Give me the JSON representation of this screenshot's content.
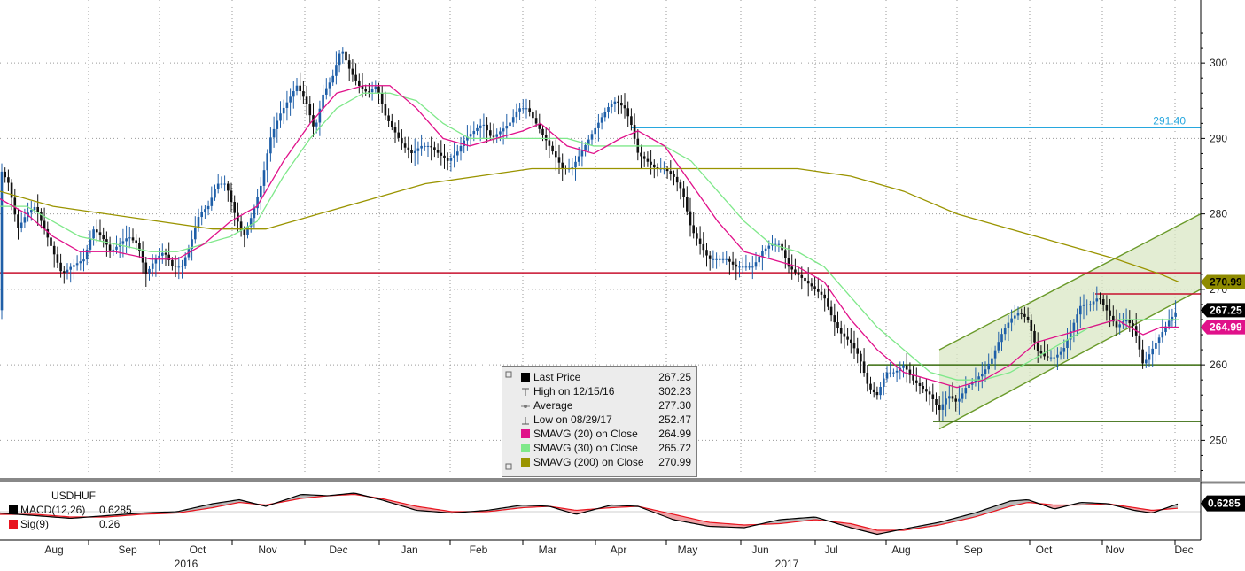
{
  "chart_data": {
    "type": "line",
    "instrument": "USDHUF",
    "price_axis": {
      "ylim": [
        245,
        306
      ],
      "ticks": [
        250,
        260,
        270,
        280,
        290,
        300
      ]
    },
    "x_axis": {
      "months": [
        "Aug",
        "Sep",
        "Oct",
        "Nov",
        "Dec",
        "Jan",
        "Feb",
        "Mar",
        "Apr",
        "May",
        "Jun",
        "Jul",
        "Aug",
        "Sep",
        "Oct",
        "Nov",
        "Dec"
      ],
      "years": [
        "2016",
        "2017"
      ]
    },
    "price_points": [
      [
        0,
        286
      ],
      [
        10,
        284
      ],
      [
        20,
        278
      ],
      [
        30,
        280
      ],
      [
        40,
        281
      ],
      [
        50,
        278
      ],
      [
        60,
        275
      ],
      [
        70,
        272
      ],
      [
        80,
        273
      ],
      [
        95,
        274
      ],
      [
        105,
        278
      ],
      [
        115,
        277
      ],
      [
        125,
        275
      ],
      [
        135,
        276
      ],
      [
        145,
        277
      ],
      [
        155,
        276
      ],
      [
        165,
        272
      ],
      [
        175,
        274
      ],
      [
        185,
        275
      ],
      [
        195,
        273
      ],
      [
        205,
        273
      ],
      [
        215,
        276
      ],
      [
        225,
        280
      ],
      [
        235,
        281
      ],
      [
        245,
        284
      ],
      [
        255,
        284
      ],
      [
        265,
        280
      ],
      [
        275,
        277
      ],
      [
        285,
        280
      ],
      [
        295,
        284
      ],
      [
        305,
        290
      ],
      [
        315,
        293
      ],
      [
        325,
        295
      ],
      [
        335,
        297
      ],
      [
        345,
        295
      ],
      [
        355,
        291
      ],
      [
        365,
        296
      ],
      [
        375,
        298
      ],
      [
        385,
        302
      ],
      [
        395,
        299
      ],
      [
        405,
        297
      ],
      [
        415,
        296
      ],
      [
        425,
        297
      ],
      [
        435,
        293
      ],
      [
        445,
        291
      ],
      [
        455,
        289
      ],
      [
        465,
        288
      ],
      [
        475,
        289
      ],
      [
        485,
        289
      ],
      [
        495,
        288
      ],
      [
        505,
        287
      ],
      [
        515,
        288
      ],
      [
        525,
        290
      ],
      [
        535,
        291
      ],
      [
        545,
        292
      ],
      [
        555,
        290
      ],
      [
        565,
        291
      ],
      [
        575,
        292
      ],
      [
        585,
        294
      ],
      [
        595,
        294
      ],
      [
        605,
        292
      ],
      [
        615,
        290
      ],
      [
        625,
        288
      ],
      [
        635,
        286
      ],
      [
        645,
        286
      ],
      [
        655,
        288
      ],
      [
        665,
        290
      ],
      [
        675,
        292
      ],
      [
        685,
        294
      ],
      [
        695,
        295
      ],
      [
        705,
        294
      ],
      [
        712,
        292
      ],
      [
        720,
        288
      ],
      [
        730,
        287
      ],
      [
        740,
        286
      ],
      [
        750,
        286
      ],
      [
        760,
        285
      ],
      [
        770,
        283
      ],
      [
        780,
        278
      ],
      [
        790,
        276
      ],
      [
        800,
        274
      ],
      [
        810,
        274
      ],
      [
        820,
        274
      ],
      [
        830,
        273
      ],
      [
        840,
        273
      ],
      [
        850,
        273
      ],
      [
        860,
        275
      ],
      [
        870,
        276
      ],
      [
        880,
        276
      ],
      [
        890,
        273
      ],
      [
        900,
        272
      ],
      [
        910,
        271
      ],
      [
        920,
        270
      ],
      [
        930,
        269
      ],
      [
        940,
        266
      ],
      [
        950,
        264
      ],
      [
        960,
        263
      ],
      [
        970,
        261
      ],
      [
        980,
        257
      ],
      [
        990,
        256
      ],
      [
        1000,
        259
      ],
      [
        1010,
        259
      ],
      [
        1020,
        260
      ],
      [
        1030,
        258
      ],
      [
        1040,
        257
      ],
      [
        1050,
        256
      ],
      [
        1060,
        254
      ],
      [
        1070,
        256
      ],
      [
        1080,
        255
      ],
      [
        1090,
        257
      ],
      [
        1100,
        258
      ],
      [
        1110,
        259
      ],
      [
        1120,
        261
      ],
      [
        1130,
        264
      ],
      [
        1140,
        266
      ],
      [
        1150,
        267
      ],
      [
        1160,
        266
      ],
      [
        1170,
        262
      ],
      [
        1180,
        261
      ],
      [
        1190,
        261
      ],
      [
        1200,
        262
      ],
      [
        1210,
        265
      ],
      [
        1220,
        268
      ],
      [
        1230,
        268
      ],
      [
        1240,
        269
      ],
      [
        1250,
        267
      ],
      [
        1260,
        265
      ],
      [
        1270,
        266
      ],
      [
        1280,
        265
      ],
      [
        1290,
        260
      ],
      [
        1300,
        262
      ],
      [
        1310,
        264
      ],
      [
        1320,
        266
      ],
      [
        1330,
        267.25
      ]
    ],
    "sma20_points": [
      [
        0,
        282
      ],
      [
        30,
        280
      ],
      [
        60,
        277
      ],
      [
        90,
        275
      ],
      [
        130,
        275
      ],
      [
        170,
        274
      ],
      [
        200,
        274
      ],
      [
        230,
        276
      ],
      [
        260,
        279
      ],
      [
        290,
        281
      ],
      [
        320,
        287
      ],
      [
        350,
        292
      ],
      [
        380,
        296
      ],
      [
        410,
        297
      ],
      [
        440,
        297
      ],
      [
        470,
        294
      ],
      [
        500,
        290
      ],
      [
        530,
        289
      ],
      [
        560,
        290
      ],
      [
        590,
        291
      ],
      [
        610,
        292
      ],
      [
        640,
        289
      ],
      [
        670,
        288
      ],
      [
        700,
        290
      ],
      [
        720,
        291
      ],
      [
        750,
        289
      ],
      [
        780,
        284
      ],
      [
        810,
        279
      ],
      [
        840,
        275
      ],
      [
        870,
        274
      ],
      [
        900,
        273
      ],
      [
        930,
        271
      ],
      [
        960,
        266
      ],
      [
        990,
        262
      ],
      [
        1020,
        259
      ],
      [
        1050,
        258
      ],
      [
        1080,
        257
      ],
      [
        1110,
        258
      ],
      [
        1140,
        260
      ],
      [
        1170,
        263
      ],
      [
        1200,
        264
      ],
      [
        1230,
        265
      ],
      [
        1260,
        266
      ],
      [
        1290,
        264
      ],
      [
        1310,
        265
      ],
      [
        1330,
        265
      ]
    ],
    "sma30_points": [
      [
        0,
        281
      ],
      [
        30,
        281
      ],
      [
        60,
        279
      ],
      [
        90,
        277
      ],
      [
        130,
        276
      ],
      [
        170,
        275
      ],
      [
        200,
        275
      ],
      [
        230,
        276
      ],
      [
        260,
        277
      ],
      [
        290,
        279
      ],
      [
        320,
        285
      ],
      [
        350,
        290
      ],
      [
        380,
        294
      ],
      [
        410,
        296
      ],
      [
        440,
        296
      ],
      [
        470,
        295
      ],
      [
        500,
        292
      ],
      [
        530,
        290
      ],
      [
        560,
        290
      ],
      [
        590,
        290
      ],
      [
        610,
        290
      ],
      [
        640,
        290
      ],
      [
        670,
        289
      ],
      [
        700,
        289
      ],
      [
        720,
        289
      ],
      [
        750,
        289
      ],
      [
        780,
        287
      ],
      [
        810,
        283
      ],
      [
        840,
        279
      ],
      [
        870,
        276
      ],
      [
        900,
        275
      ],
      [
        930,
        273
      ],
      [
        960,
        269
      ],
      [
        990,
        265
      ],
      [
        1020,
        262
      ],
      [
        1050,
        259
      ],
      [
        1080,
        258
      ],
      [
        1110,
        258
      ],
      [
        1140,
        259
      ],
      [
        1170,
        261
      ],
      [
        1200,
        263
      ],
      [
        1230,
        265
      ],
      [
        1260,
        266
      ],
      [
        1290,
        266
      ],
      [
        1310,
        266
      ],
      [
        1330,
        266
      ]
    ],
    "sma200_points": [
      [
        0,
        283
      ],
      [
        60,
        281
      ],
      [
        120,
        280
      ],
      [
        180,
        279
      ],
      [
        240,
        278
      ],
      [
        300,
        278
      ],
      [
        360,
        280
      ],
      [
        420,
        282
      ],
      [
        480,
        284
      ],
      [
        540,
        285
      ],
      [
        600,
        286
      ],
      [
        660,
        286
      ],
      [
        720,
        286
      ],
      [
        780,
        286
      ],
      [
        840,
        286
      ],
      [
        900,
        286
      ],
      [
        960,
        285
      ],
      [
        1020,
        283
      ],
      [
        1080,
        280
      ],
      [
        1140,
        278
      ],
      [
        1200,
        276
      ],
      [
        1260,
        274
      ],
      [
        1310,
        272
      ],
      [
        1330,
        271
      ]
    ],
    "horizontal_levels": [
      {
        "value": 291.4,
        "label": "291.40",
        "color": "#27a7de"
      },
      {
        "value": 272.2,
        "color": "#c8102e"
      },
      {
        "value": 269.4,
        "color": "#c8102e"
      },
      {
        "value": 260,
        "color": "#3a6d0f"
      },
      {
        "value": 252.5,
        "color": "#3a6d0f"
      }
    ],
    "channel": {
      "lower": [
        [
          1060,
          251.5
        ],
        [
          1355,
          270
        ]
      ],
      "upper": [
        [
          1060,
          262
        ],
        [
          1355,
          280
        ]
      ]
    },
    "last_values": [
      {
        "label": "270.99",
        "value": 270.99,
        "bg": "#8f8b00",
        "fg": "#000000"
      },
      {
        "label": "267.25",
        "value": 267.25,
        "bg": "#000000",
        "fg": "#ffffff"
      },
      {
        "label": "264.99",
        "value": 264.99,
        "bg": "#e0118a",
        "fg": "#ffffff"
      }
    ],
    "legend": [
      {
        "label": "Last Price",
        "value": "267.25",
        "color": "#000000"
      },
      {
        "label": "High on 12/15/16",
        "value": "302.23",
        "icon": "high"
      },
      {
        "label": "Average",
        "value": "277.30",
        "icon": "avg"
      },
      {
        "label": "Low on 08/29/17",
        "value": "252.47",
        "icon": "low"
      },
      {
        "label": "SMAVG (20) on Close",
        "value": "264.99",
        "color": "#e0118a"
      },
      {
        "label": "SMAVG (30) on Close",
        "value": "265.72",
        "color": "#7fe88a"
      },
      {
        "label": "SMAVG (200) on Close",
        "value": "270.99",
        "color": "#9a9400"
      }
    ],
    "macd": {
      "title": "USDHUF",
      "macd_label": "MACD(12,26)",
      "macd_value": "0.6285",
      "signal_label": "Sig(9)",
      "signal_value": "0.26",
      "last_label": "0.6285",
      "macd_points": [
        [
          0,
          -0.1
        ],
        [
          40,
          -0.3
        ],
        [
          80,
          -0.5
        ],
        [
          120,
          -0.3
        ],
        [
          160,
          -0.1
        ],
        [
          200,
          0
        ],
        [
          240,
          0.6
        ],
        [
          270,
          0.9
        ],
        [
          300,
          0.4
        ],
        [
          340,
          1.3
        ],
        [
          370,
          1.2
        ],
        [
          400,
          1.4
        ],
        [
          430,
          0.9
        ],
        [
          470,
          0.1
        ],
        [
          510,
          -0.1
        ],
        [
          550,
          0.1
        ],
        [
          590,
          0.5
        ],
        [
          620,
          0.4
        ],
        [
          650,
          -0.2
        ],
        [
          690,
          0.5
        ],
        [
          720,
          0.4
        ],
        [
          760,
          -0.6
        ],
        [
          800,
          -1.1
        ],
        [
          840,
          -1.2
        ],
        [
          880,
          -0.6
        ],
        [
          920,
          -0.4
        ],
        [
          960,
          -1.2
        ],
        [
          990,
          -1.7
        ],
        [
          1020,
          -1.3
        ],
        [
          1060,
          -0.8
        ],
        [
          1100,
          -0.1
        ],
        [
          1140,
          0.8
        ],
        [
          1160,
          0.9
        ],
        [
          1190,
          0.2
        ],
        [
          1220,
          0.7
        ],
        [
          1250,
          0.6
        ],
        [
          1280,
          0.1
        ],
        [
          1300,
          -0.1
        ],
        [
          1330,
          0.6
        ]
      ],
      "signal_points": [
        [
          0,
          -0.2
        ],
        [
          40,
          -0.2
        ],
        [
          80,
          -0.4
        ],
        [
          120,
          -0.4
        ],
        [
          160,
          -0.2
        ],
        [
          200,
          -0.1
        ],
        [
          240,
          0.3
        ],
        [
          270,
          0.7
        ],
        [
          300,
          0.5
        ],
        [
          340,
          1.0
        ],
        [
          370,
          1.2
        ],
        [
          400,
          1.3
        ],
        [
          430,
          1.0
        ],
        [
          470,
          0.4
        ],
        [
          510,
          0
        ],
        [
          550,
          0
        ],
        [
          590,
          0.3
        ],
        [
          620,
          0.4
        ],
        [
          650,
          0.1
        ],
        [
          690,
          0.3
        ],
        [
          720,
          0.4
        ],
        [
          760,
          -0.2
        ],
        [
          800,
          -0.8
        ],
        [
          840,
          -1.0
        ],
        [
          880,
          -0.9
        ],
        [
          920,
          -0.6
        ],
        [
          960,
          -0.9
        ],
        [
          990,
          -1.4
        ],
        [
          1020,
          -1.4
        ],
        [
          1060,
          -1.0
        ],
        [
          1100,
          -0.4
        ],
        [
          1140,
          0.4
        ],
        [
          1160,
          0.7
        ],
        [
          1190,
          0.5
        ],
        [
          1220,
          0.5
        ],
        [
          1250,
          0.6
        ],
        [
          1280,
          0.3
        ],
        [
          1300,
          0.1
        ],
        [
          1330,
          0.26
        ]
      ]
    }
  }
}
